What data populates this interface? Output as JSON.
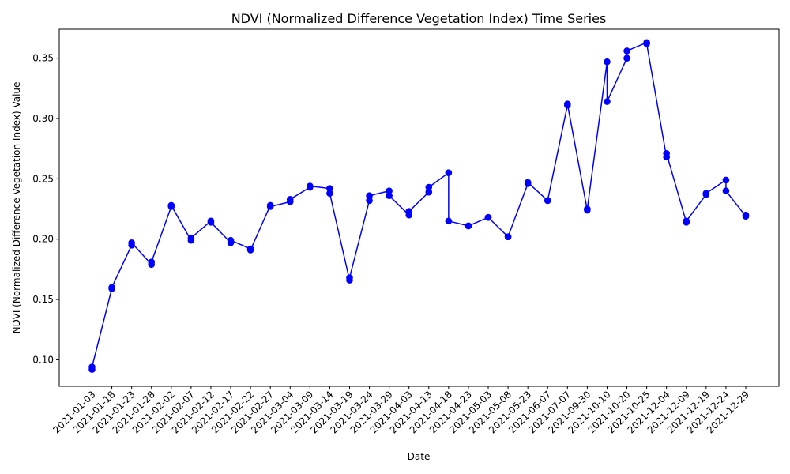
{
  "chart_data": {
    "type": "line",
    "title": "NDVI (Normalized Difference Vegetation Index) Time Series",
    "xlabel": "Date",
    "ylabel": "NDVI (Normalized Difference Vegetation Index) Value",
    "ylim": [
      0.078,
      0.374
    ],
    "yticks": [
      "0.10",
      "0.15",
      "0.20",
      "0.25",
      "0.30",
      "0.35"
    ],
    "categories": [
      "2021-01-03",
      "2021-01-18",
      "2021-01-23",
      "2021-01-28",
      "2021-02-02",
      "2021-02-07",
      "2021-02-12",
      "2021-02-17",
      "2021-02-22",
      "2021-02-27",
      "2021-03-04",
      "2021-03-09",
      "2021-03-14",
      "2021-03-19",
      "2021-03-24",
      "2021-03-29",
      "2021-04-03",
      "2021-04-13",
      "2021-04-18",
      "2021-04-23",
      "2021-05-03",
      "2021-05-08",
      "2021-05-23",
      "2021-06-07",
      "2021-07-07",
      "2021-09-30",
      "2021-10-10",
      "2021-10-20",
      "2021-10-25",
      "2021-12-04",
      "2021-12-09",
      "2021-12-19",
      "2021-12-24",
      "2021-12-29"
    ],
    "series": [
      {
        "color": "#0000ff",
        "marker": "circle",
        "points": [
          [
            "2021-01-03",
            0.092
          ],
          [
            "2021-01-03",
            0.094
          ],
          [
            "2021-01-18",
            0.159
          ],
          [
            "2021-01-18",
            0.16
          ],
          [
            "2021-01-23",
            0.195
          ],
          [
            "2021-01-23",
            0.197
          ],
          [
            "2021-01-28",
            0.179
          ],
          [
            "2021-01-28",
            0.181
          ],
          [
            "2021-02-02",
            0.227
          ],
          [
            "2021-02-02",
            0.228
          ],
          [
            "2021-02-07",
            0.199
          ],
          [
            "2021-02-07",
            0.201
          ],
          [
            "2021-02-12",
            0.215
          ],
          [
            "2021-02-12",
            0.214
          ],
          [
            "2021-02-17",
            0.197
          ],
          [
            "2021-02-17",
            0.199
          ],
          [
            "2021-02-22",
            0.192
          ],
          [
            "2021-02-22",
            0.191
          ],
          [
            "2021-02-27",
            0.228
          ],
          [
            "2021-02-27",
            0.227
          ],
          [
            "2021-03-04",
            0.231
          ],
          [
            "2021-03-04",
            0.233
          ],
          [
            "2021-03-09",
            0.243
          ],
          [
            "2021-03-09",
            0.244
          ],
          [
            "2021-03-14",
            0.242
          ],
          [
            "2021-03-14",
            0.238
          ],
          [
            "2021-03-19",
            0.166
          ],
          [
            "2021-03-19",
            0.168
          ],
          [
            "2021-03-24",
            0.232
          ],
          [
            "2021-03-24",
            0.236
          ],
          [
            "2021-03-29",
            0.24
          ],
          [
            "2021-03-29",
            0.236
          ],
          [
            "2021-04-03",
            0.22
          ],
          [
            "2021-04-03",
            0.223
          ],
          [
            "2021-04-13",
            0.239
          ],
          [
            "2021-04-13",
            0.243
          ],
          [
            "2021-04-18",
            0.255
          ],
          [
            "2021-04-18",
            0.215
          ],
          [
            "2021-04-23",
            0.211
          ],
          [
            "2021-04-23",
            0.211
          ],
          [
            "2021-05-03",
            0.218
          ],
          [
            "2021-05-03",
            0.218
          ],
          [
            "2021-05-08",
            0.202
          ],
          [
            "2021-05-08",
            0.202
          ],
          [
            "2021-05-23",
            0.246
          ],
          [
            "2021-05-23",
            0.247
          ],
          [
            "2021-06-07",
            0.232
          ],
          [
            "2021-06-07",
            0.232
          ],
          [
            "2021-07-07",
            0.311
          ],
          [
            "2021-07-07",
            0.312
          ],
          [
            "2021-09-30",
            0.224
          ],
          [
            "2021-09-30",
            0.225
          ],
          [
            "2021-10-10",
            0.347
          ],
          [
            "2021-10-10",
            0.314
          ],
          [
            "2021-10-20",
            0.35
          ],
          [
            "2021-10-20",
            0.356
          ],
          [
            "2021-10-25",
            0.363
          ],
          [
            "2021-10-25",
            0.362
          ],
          [
            "2021-12-04",
            0.268
          ],
          [
            "2021-12-04",
            0.271
          ],
          [
            "2021-12-09",
            0.214
          ],
          [
            "2021-12-09",
            0.215
          ],
          [
            "2021-12-19",
            0.237
          ],
          [
            "2021-12-19",
            0.238
          ],
          [
            "2021-12-24",
            0.249
          ],
          [
            "2021-12-24",
            0.24
          ],
          [
            "2021-12-29",
            0.219
          ],
          [
            "2021-12-29",
            0.22
          ]
        ]
      }
    ],
    "grid": false,
    "legend": "none"
  }
}
